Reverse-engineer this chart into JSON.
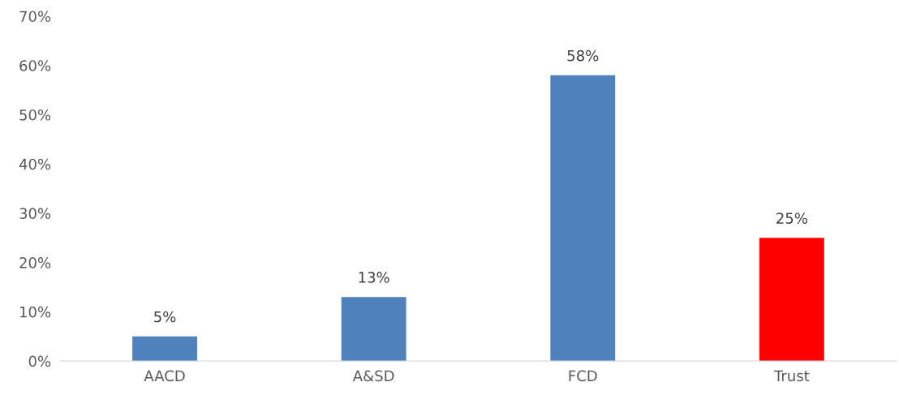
{
  "chart_data": {
    "type": "bar",
    "categories": [
      "AACD",
      "A&SD",
      "FCD",
      "Trust"
    ],
    "values": [
      5,
      13,
      58,
      25
    ],
    "colors": [
      "#4f81bd",
      "#4f81bd",
      "#4f81bd",
      "#ff0000"
    ],
    "value_labels": [
      "5%",
      "13%",
      "58%",
      "25%"
    ],
    "ylim": [
      0,
      70
    ],
    "yticks": [
      {
        "value": 0,
        "label": "0%"
      },
      {
        "value": 10,
        "label": "10%"
      },
      {
        "value": 20,
        "label": "20%"
      },
      {
        "value": 30,
        "label": "30%"
      },
      {
        "value": 40,
        "label": "40%"
      },
      {
        "value": 50,
        "label": "50%"
      },
      {
        "value": 60,
        "label": "60%"
      },
      {
        "value": 70,
        "label": "70%"
      }
    ],
    "grid": false,
    "legend": false
  }
}
